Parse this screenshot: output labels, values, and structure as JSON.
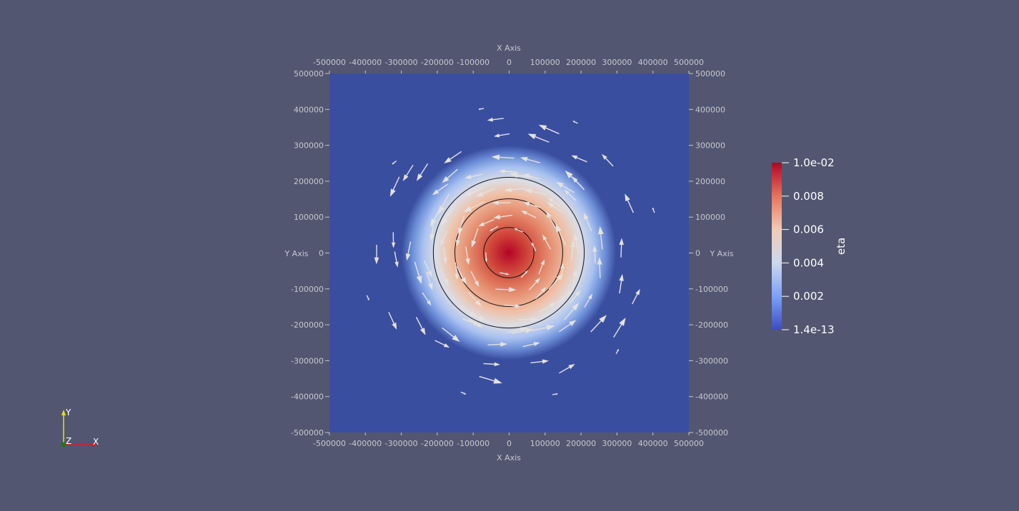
{
  "axes": {
    "x_title": "X Axis",
    "y_title": "Y Axis",
    "x_ticks": [
      "-500000",
      "-400000",
      "-300000",
      "-200000",
      "-100000",
      "0",
      "100000",
      "200000",
      "300000",
      "400000",
      "500000"
    ],
    "y_ticks": [
      "500000",
      "400000",
      "300000",
      "200000",
      "100000",
      "0",
      "-100000",
      "-200000",
      "-300000",
      "-400000",
      "-500000"
    ],
    "range": [
      -500000,
      500000
    ]
  },
  "field": {
    "peak_value": 0.01,
    "background_value": 1.4e-13,
    "contour_radii": [
      70000,
      150000,
      210000
    ],
    "vortex_rotation": "counterclockwise"
  },
  "colorbar": {
    "title": "eta",
    "labels": [
      "1.0e-02",
      "0.008",
      "0.006",
      "0.004",
      "0.002",
      "1.4e-13"
    ],
    "colors": [
      "#b40426",
      "#e7745b",
      "#f2cbb7",
      "#cbd8ee",
      "#7ea1f8",
      "#3b4cc0"
    ]
  },
  "orientation_axes": {
    "x_label": "X",
    "y_label": "Y",
    "z_label": "Z",
    "x_color": "#cc2222",
    "y_color": "#e6e600",
    "z_color": "#1a7a1a"
  },
  "colors": {
    "background": "#525670",
    "plot_background": "#3a4ea0",
    "axis_text": "#c8c8d0"
  }
}
